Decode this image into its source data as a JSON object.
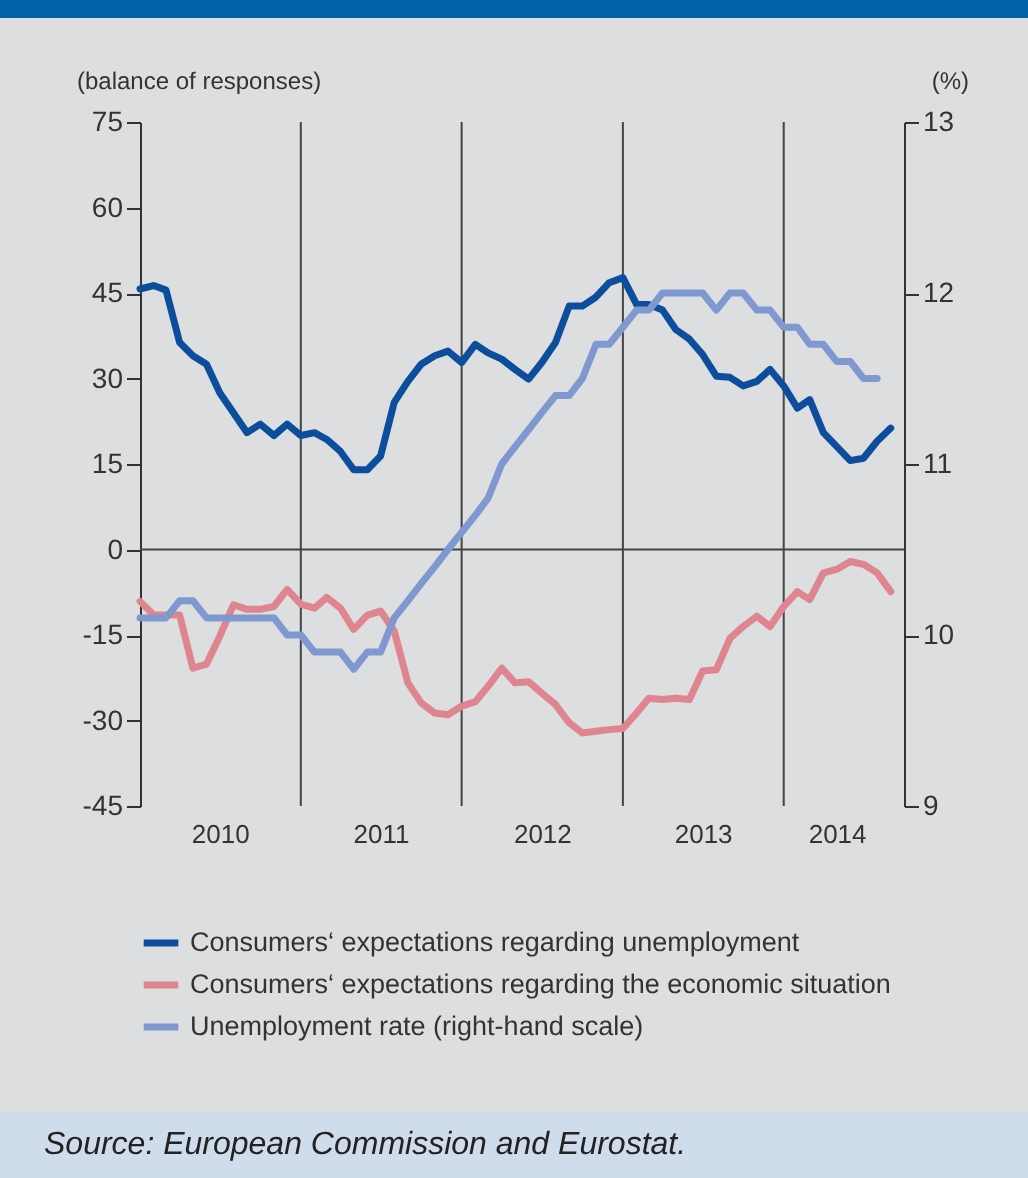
{
  "chart_data": {
    "type": "line",
    "ylabel": "(balance of responses)",
    "y2label": "(%)",
    "x": [
      "2010-01",
      "2010-02",
      "2010-03",
      "2010-04",
      "2010-05",
      "2010-06",
      "2010-07",
      "2010-08",
      "2010-09",
      "2010-10",
      "2010-11",
      "2010-12",
      "2011-01",
      "2011-02",
      "2011-03",
      "2011-04",
      "2011-05",
      "2011-06",
      "2011-07",
      "2011-08",
      "2011-09",
      "2011-10",
      "2011-11",
      "2011-12",
      "2012-01",
      "2012-02",
      "2012-03",
      "2012-04",
      "2012-05",
      "2012-06",
      "2012-07",
      "2012-08",
      "2012-09",
      "2012-10",
      "2012-11",
      "2012-12",
      "2013-01",
      "2013-02",
      "2013-03",
      "2013-04",
      "2013-05",
      "2013-06",
      "2013-07",
      "2013-08",
      "2013-09",
      "2013-10",
      "2013-11",
      "2013-12",
      "2014-01",
      "2014-02",
      "2014-03",
      "2014-04",
      "2014-05",
      "2014-06",
      "2014-07",
      "2014-08",
      "2014-09"
    ],
    "series": [
      {
        "name": "Consumers‘ expectations regarding unemployment",
        "color": "#0d4e9c",
        "values": [
          45.7,
          46.3,
          45.5,
          36.3,
          34,
          32.5,
          27.5,
          24,
          20.5,
          22,
          20,
          22,
          20,
          20.5,
          19.3,
          17.2,
          14,
          14,
          16.4,
          25.8,
          29.5,
          32.5,
          34,
          34.8,
          32.8,
          36,
          34.5,
          33.4,
          31.6,
          29.9,
          32.8,
          36.3,
          42.7,
          42.7,
          44.3,
          46.8,
          47.7,
          43,
          43,
          42,
          38.6,
          36.9,
          34.2,
          30.4,
          30.2,
          28.7,
          29.5,
          31.6,
          28.7,
          24.8,
          26.3,
          20.5,
          18.1,
          15.6,
          16,
          19,
          21.3
        ]
      },
      {
        "name": "Consumers‘ expectations regarding the economic situation",
        "color": "#de8590",
        "values": [
          -9.1,
          -11.5,
          -11.5,
          -11.5,
          -20.8,
          -20.1,
          -15.2,
          -9.7,
          -10.5,
          -10.5,
          -10,
          -7,
          -9.6,
          -10.3,
          -8.4,
          -10.3,
          -14,
          -11.5,
          -10.8,
          -14.3,
          -23.4,
          -26.9,
          -28.7,
          -29,
          -27.5,
          -26.7,
          -24,
          -20.8,
          -23.4,
          -23.2,
          -25.2,
          -27.2,
          -30.4,
          -32.2,
          -31.9,
          -31.6,
          -31.4,
          -28.7,
          -26.1,
          -26.3,
          -26.1,
          -26.3,
          -21.3,
          -21.1,
          -15.6,
          -13.5,
          -11.7,
          -13.5,
          -10,
          -7.4,
          -8.8,
          -4.1,
          -3.5,
          -2.1,
          -2.6,
          -4.1,
          -7.4
        ]
      },
      {
        "name": "Unemployment rate (right-hand scale)",
        "color": "#7f98cf",
        "axis": "y2",
        "values": [
          10.1,
          10.1,
          10.1,
          10.2,
          10.2,
          10.1,
          10.1,
          10.1,
          10.1,
          10.1,
          10.1,
          10.0,
          10.0,
          9.9,
          9.9,
          9.9,
          9.8,
          9.9,
          9.9,
          10.1,
          10.2,
          10.3,
          10.4,
          10.5,
          10.6,
          10.7,
          10.8,
          11.0,
          11.1,
          11.2,
          11.3,
          11.4,
          11.4,
          11.5,
          11.7,
          11.7,
          11.8,
          11.9,
          11.9,
          12.0,
          12.0,
          12.0,
          12.0,
          11.9,
          12.0,
          12.0,
          11.9,
          11.9,
          11.8,
          11.8,
          11.7,
          11.7,
          11.6,
          11.6,
          11.5,
          11.5,
          null
        ]
      }
    ],
    "xlim": [
      "2010-01",
      "2014-10"
    ],
    "xticks": [
      {
        "value": "2010-07",
        "label": "2010"
      },
      {
        "value": "2011-07",
        "label": "2011"
      },
      {
        "value": "2012-07",
        "label": "2012"
      },
      {
        "value": "2013-07",
        "label": "2013"
      },
      {
        "value": "2014-05",
        "label": "2014"
      }
    ],
    "ylim": [
      -45,
      75
    ],
    "yticks": [
      -45,
      -30,
      -15,
      0,
      15,
      30,
      45,
      60,
      75
    ],
    "y2lim": [
      9,
      13
    ],
    "y2ticks": [
      9,
      10,
      11,
      12,
      13
    ],
    "ref_lines": [
      {
        "axis": "x",
        "value": "2011-01"
      },
      {
        "axis": "x",
        "value": "2012-01"
      },
      {
        "axis": "x",
        "value": "2013-01"
      },
      {
        "axis": "x",
        "value": "2014-01"
      },
      {
        "axis": "y",
        "value": 0
      }
    ],
    "legend": "bottom",
    "annotations": [
      "Source: European Commission and Eurostat."
    ]
  }
}
